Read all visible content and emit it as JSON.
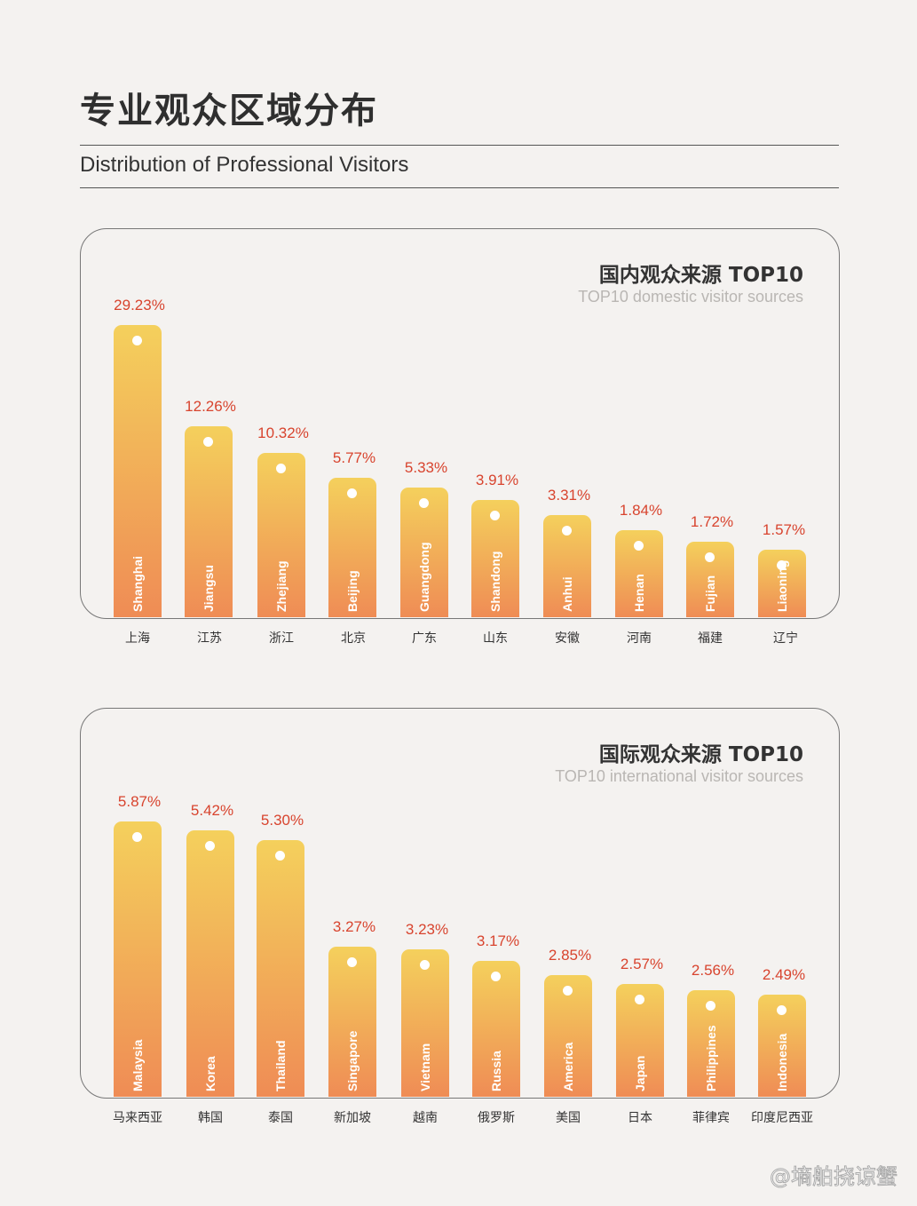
{
  "header": {
    "title": "专业观众区域分布",
    "subtitle": "Distribution of Professional Visitors"
  },
  "watermark": "@墒舶挠谅蟹",
  "colors": {
    "bar_top": "#f4d05c",
    "bar_bottom": "#ef8c55",
    "value_label": "#d8442e"
  },
  "chart_data": [
    {
      "type": "bar",
      "title": "国内观众来源 TOP10",
      "subtitle": "TOP10 domestic visitor sources",
      "categories": [
        "上海",
        "江苏",
        "浙江",
        "北京",
        "广东",
        "山东",
        "安徽",
        "河南",
        "福建",
        "辽宁"
      ],
      "categories_en": [
        "Shanghai",
        "Jiangsu",
        "Zhejiang",
        "Beijing",
        "Guangdong",
        "Shandong",
        "Anhui",
        "Henan",
        "Fujian",
        "Liaoning"
      ],
      "values": [
        29.23,
        12.26,
        10.32,
        5.77,
        5.33,
        3.91,
        3.31,
        1.84,
        1.72,
        1.57
      ],
      "labels": [
        "29.23%",
        "12.26%",
        "10.32%",
        "5.77%",
        "5.33%",
        "3.91%",
        "3.31%",
        "1.84%",
        "1.72%",
        "1.57%"
      ]
    },
    {
      "type": "bar",
      "title": "国际观众来源 TOP10",
      "subtitle": "TOP10 international visitor sources",
      "categories": [
        "马来西亚",
        "韩国",
        "泰国",
        "新加坡",
        "越南",
        "俄罗斯",
        "美国",
        "日本",
        "菲律宾",
        "印度尼西亚"
      ],
      "categories_en": [
        "Malaysia",
        "Korea",
        "Thailand",
        "Singapore",
        "Vietnam",
        "Russia",
        "America",
        "Japan",
        "Philippines",
        "Indonesia"
      ],
      "values": [
        5.87,
        5.42,
        5.3,
        3.27,
        3.23,
        3.17,
        2.85,
        2.57,
        2.56,
        2.49
      ],
      "labels": [
        "5.87%",
        "5.42%",
        "5.30%",
        "3.27%",
        "3.23%",
        "3.17%",
        "2.85%",
        "2.57%",
        "2.56%",
        "2.49%"
      ]
    }
  ]
}
